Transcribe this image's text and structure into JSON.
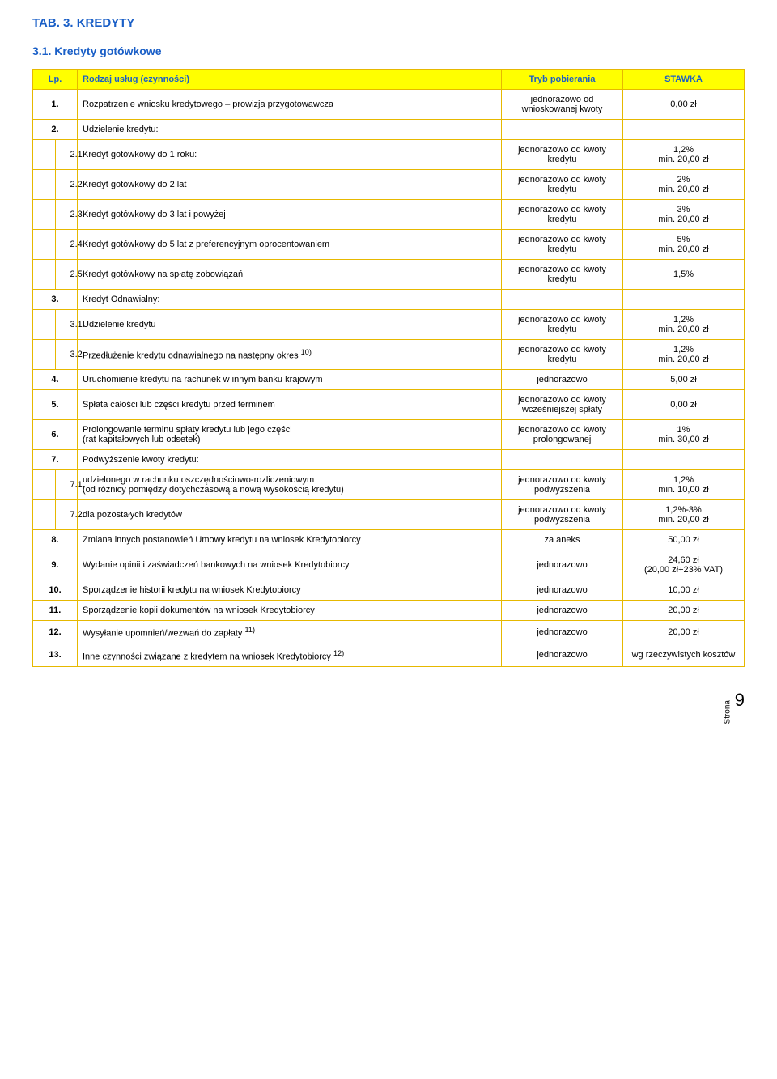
{
  "title_main": "TAB. 3. KREDYTY",
  "title_sub": "3.1. Kredyty gotówkowe",
  "header": {
    "lp": "Lp.",
    "desc": "Rodzaj usług (czynności)",
    "mode": "Tryb pobierania",
    "rate": "STAWKA"
  },
  "rows": [
    {
      "lp": "1.",
      "desc": "Rozpatrzenie wniosku kredytowego – prowizja przygotowawcza",
      "mode": "jednorazowo od wnioskowanej kwoty",
      "rate": "0,00 zł"
    },
    {
      "lp": "2.",
      "desc": "Udzielenie kredytu:",
      "mode": "",
      "rate": ""
    },
    {
      "sub": true,
      "lp": "2.1.",
      "desc": "Kredyt gotówkowy do 1 roku:",
      "mode": "jednorazowo od kwoty kredytu",
      "rate": "1,2%\nmin. 20,00 zł"
    },
    {
      "sub": true,
      "lp": "2.2.",
      "desc": "Kredyt gotówkowy do 2 lat",
      "mode": "jednorazowo od kwoty kredytu",
      "rate": "2%\nmin. 20,00 zł"
    },
    {
      "sub": true,
      "lp": "2.3.",
      "desc": "Kredyt gotówkowy do 3 lat i powyżej",
      "mode": "jednorazowo od kwoty kredytu",
      "rate": "3%\nmin. 20,00 zł"
    },
    {
      "sub": true,
      "lp": "2.4.",
      "desc": "Kredyt gotówkowy do 5 lat z preferencyjnym oprocentowaniem",
      "mode": "jednorazowo od kwoty kredytu",
      "rate": "5%\nmin. 20,00 zł"
    },
    {
      "sub": true,
      "lp": "2.5.",
      "desc": "Kredyt gotówkowy na spłatę zobowiązań",
      "mode": "jednorazowo od kwoty kredytu",
      "rate": "1,5%"
    },
    {
      "lp": "3.",
      "desc": "Kredyt Odnawialny:",
      "mode": "",
      "rate": ""
    },
    {
      "sub": true,
      "lp": "3.1.",
      "desc": "Udzielenie kredytu",
      "mode": "jednorazowo od kwoty kredytu",
      "rate": "1,2%\nmin. 20,00 zł"
    },
    {
      "sub": true,
      "lp": "3.2.",
      "desc_html": "Przedłużenie kredytu odnawialnego na następny okres <sup>10)</sup>",
      "mode": "jednorazowo od kwoty kredytu",
      "rate": "1,2%\nmin. 20,00 zł"
    },
    {
      "lp": "4.",
      "desc": "Uruchomienie kredytu na rachunek w innym banku krajowym",
      "mode": "jednorazowo",
      "rate": "5,00 zł"
    },
    {
      "lp": "5.",
      "desc": "Spłata całości lub części kredytu przed terminem",
      "mode": "jednorazowo od kwoty wcześniejszej spłaty",
      "rate": "0,00 zł"
    },
    {
      "lp": "6.",
      "desc": "Prolongowanie terminu spłaty kredytu lub jego części\n(rat kapitałowych lub odsetek)",
      "mode": "jednorazowo od kwoty prolongowanej",
      "rate": "1%\nmin. 30,00 zł"
    },
    {
      "lp": "7.",
      "desc": "Podwyższenie kwoty kredytu:",
      "mode": "",
      "rate": ""
    },
    {
      "sub": true,
      "lp": "7.1.",
      "desc": "udzielonego w rachunku oszczędnościowo-rozliczeniowym\n(od różnicy pomiędzy dotychczasową a nową wysokością kredytu)",
      "mode": "jednorazowo od kwoty podwyższenia",
      "rate": "1,2%\nmin. 10,00 zł"
    },
    {
      "sub": true,
      "lp": "7.2.",
      "desc": "dla pozostałych kredytów",
      "mode": "jednorazowo od kwoty podwyższenia",
      "rate": "1,2%-3%\nmin. 20,00 zł"
    },
    {
      "lp": "8.",
      "desc": "Zmiana innych postanowień Umowy kredytu na wniosek Kredytobiorcy",
      "mode": "za aneks",
      "rate": "50,00 zł"
    },
    {
      "lp": "9.",
      "desc": "Wydanie opinii i zaświadczeń bankowych na wniosek Kredytobiorcy",
      "mode": "jednorazowo",
      "rate": "24,60 zł\n(20,00 zł+23% VAT)"
    },
    {
      "lp": "10.",
      "desc": "Sporządzenie historii kredytu na wniosek Kredytobiorcy",
      "mode": "jednorazowo",
      "rate": "10,00 zł"
    },
    {
      "lp": "11.",
      "desc": "Sporządzenie kopii dokumentów na wniosek Kredytobiorcy",
      "mode": "jednorazowo",
      "rate": "20,00 zł"
    },
    {
      "lp": "12.",
      "desc_html": "Wysyłanie upomnień/wezwań do zapłaty <sup>11)</sup>",
      "mode": "jednorazowo",
      "rate": "20,00 zł"
    },
    {
      "lp": "13.",
      "desc_html": "Inne czynności związane z kredytem na wniosek Kredytobiorcy <sup>12)</sup>",
      "mode": "jednorazowo",
      "rate": "wg rzeczywistych kosztów"
    }
  ],
  "footer": {
    "label": "Strona",
    "page": "9"
  }
}
